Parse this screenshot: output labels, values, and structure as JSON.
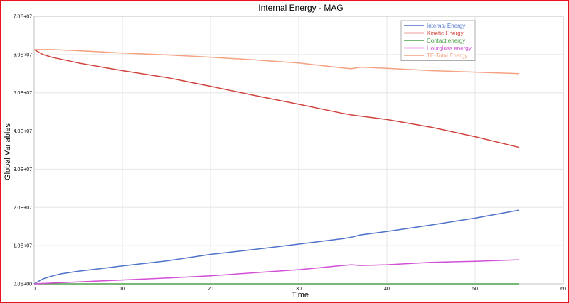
{
  "chart_data": {
    "type": "line",
    "title": "Internal Energy - MAG",
    "xlabel": "Time",
    "ylabel": "Global Variables",
    "xlim": [
      0,
      60
    ],
    "ylim": [
      0,
      70000000
    ],
    "x_ticks": [
      "0",
      "10",
      "20",
      "30",
      "40",
      "50",
      "60"
    ],
    "y_ticks": [
      "0.0E+00",
      "1.0E+07",
      "2.0E+07",
      "3.0E+07",
      "4.0E+07",
      "5.0E+07",
      "6.0E+07",
      "7.0E+07"
    ],
    "grid": true,
    "legend_position": "top-right",
    "series": [
      {
        "name": "Internal Energy",
        "color": "#4f73c9",
        "x": [
          0,
          1,
          2,
          3,
          5,
          8,
          10,
          15,
          20,
          25,
          30,
          35,
          36,
          37,
          40,
          45,
          50,
          55
        ],
        "y": [
          0,
          1300000,
          2000000,
          2600000,
          3300000,
          4100000,
          4700000,
          6000000,
          7700000,
          9000000,
          10400000,
          11800000,
          12200000,
          12800000,
          13700000,
          15400000,
          17200000,
          19300000
        ]
      },
      {
        "name": "Kinetic Energy",
        "color": "#d0443e",
        "x": [
          0,
          1,
          2,
          3,
          5,
          8,
          10,
          15,
          20,
          25,
          30,
          35,
          36,
          40,
          45,
          50,
          55
        ],
        "y": [
          61300000,
          60000000,
          59300000,
          58800000,
          57800000,
          56600000,
          55800000,
          54000000,
          51700000,
          49300000,
          47000000,
          44600000,
          44200000,
          43000000,
          41000000,
          38500000,
          35700000
        ]
      },
      {
        "name": "Contact energy",
        "color": "#4fa04a",
        "x": [
          0,
          55
        ],
        "y": [
          0,
          0
        ]
      },
      {
        "name": "Hourglass energy",
        "color": "#d24fd6",
        "x": [
          0,
          5,
          10,
          15,
          20,
          25,
          30,
          35,
          36,
          37,
          40,
          45,
          50,
          55
        ],
        "y": [
          0,
          500000,
          1000000,
          1500000,
          2100000,
          2900000,
          3700000,
          4800000,
          5000000,
          4800000,
          5000000,
          5600000,
          5900000,
          6300000
        ]
      },
      {
        "name": "TE-Total Energy",
        "color": "#f4a281",
        "x": [
          0,
          2,
          5,
          10,
          15,
          20,
          25,
          30,
          35,
          36,
          37,
          40,
          45,
          50,
          55
        ],
        "y": [
          61300000,
          61300000,
          61000000,
          60400000,
          59900000,
          59300000,
          58600000,
          57800000,
          56500000,
          56300000,
          56700000,
          56400000,
          55800000,
          55400000,
          55000000
        ]
      }
    ]
  }
}
